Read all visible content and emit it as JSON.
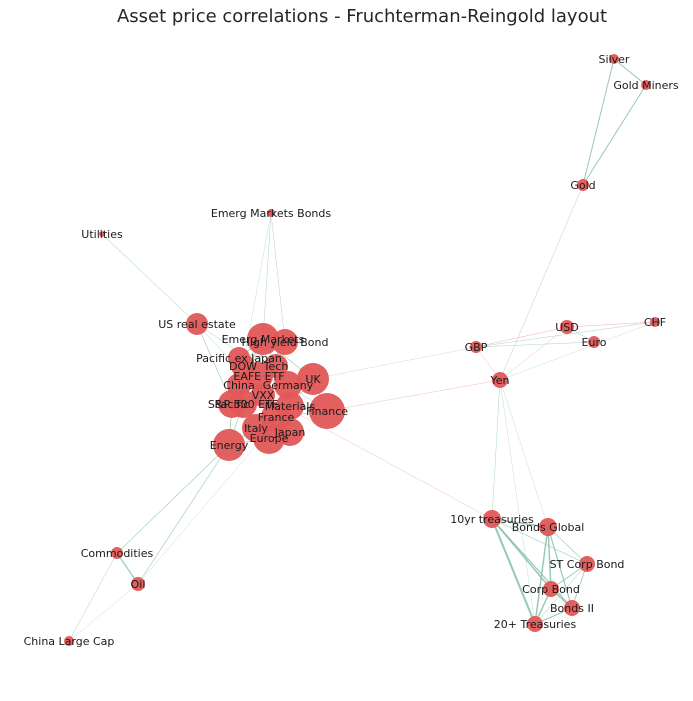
{
  "title": "Asset price correlations - Fruchterman-Reingold layout",
  "colors": {
    "node": "#e15759",
    "edge_positive": "#86bfa7",
    "edge_negative": "#f08fa0"
  },
  "nodes": [
    {
      "id": "silver",
      "label": "Silver",
      "size": 5
    },
    {
      "id": "gold-miners",
      "label": "Gold Miners",
      "size": 5
    },
    {
      "id": "gold",
      "label": "Gold",
      "size": 6
    },
    {
      "id": "emerg-markets-bonds",
      "label": "Emerg Markets Bonds",
      "size": 4
    },
    {
      "id": "utilities",
      "label": "Utilities",
      "size": 3
    },
    {
      "id": "us-real-estate",
      "label": "US real estate",
      "size": 11
    },
    {
      "id": "emerg-markets",
      "label": "Emerg Markets",
      "size": 16
    },
    {
      "id": "high-yield-bond",
      "label": "High yield Bond",
      "size": 13
    },
    {
      "id": "pacific-ex-japan",
      "label": "Pacific ex Japan",
      "size": 11
    },
    {
      "id": "dow",
      "label": "DOW",
      "size": 12
    },
    {
      "id": "tech",
      "label": "Tech",
      "size": 12
    },
    {
      "id": "eafe-etf",
      "label": "EAFE ETF",
      "size": 14
    },
    {
      "id": "uk",
      "label": "UK",
      "size": 16
    },
    {
      "id": "china",
      "label": "China",
      "size": 12
    },
    {
      "id": "germany",
      "label": "Germany",
      "size": 14
    },
    {
      "id": "vxx",
      "label": "VXX",
      "size": 12
    },
    {
      "id": "sp500-etf",
      "label": "S&P 500 ETF",
      "size": 14
    },
    {
      "id": "pacific",
      "label": "Pacific",
      "size": 14
    },
    {
      "id": "materials",
      "label": "Materials",
      "size": 14
    },
    {
      "id": "finance",
      "label": "Finance",
      "size": 18
    },
    {
      "id": "france",
      "label": "France",
      "size": 15
    },
    {
      "id": "italy",
      "label": "Italy",
      "size": 14
    },
    {
      "id": "japan",
      "label": "Japan",
      "size": 14
    },
    {
      "id": "europe",
      "label": "Europe",
      "size": 16
    },
    {
      "id": "energy",
      "label": "Energy",
      "size": 16
    },
    {
      "id": "usd",
      "label": "USD",
      "size": 7
    },
    {
      "id": "chf",
      "label": "CHF",
      "size": 5
    },
    {
      "id": "gbp",
      "label": "GBP",
      "size": 6
    },
    {
      "id": "euro",
      "label": "Euro",
      "size": 6
    },
    {
      "id": "yen",
      "label": "Yen",
      "size": 8
    },
    {
      "id": "10yr-treasuries",
      "label": "10yr treasuries",
      "size": 9
    },
    {
      "id": "bonds-global",
      "label": "Bonds Global",
      "size": 9
    },
    {
      "id": "st-corp-bond",
      "label": "ST Corp Bond",
      "size": 8
    },
    {
      "id": "corp-bond",
      "label": "Corp Bond",
      "size": 8
    },
    {
      "id": "bonds-ii",
      "label": "Bonds II",
      "size": 8
    },
    {
      "id": "20-treasuries",
      "label": "20+ Treasuries",
      "size": 8
    },
    {
      "id": "commodities",
      "label": "Commodities",
      "size": 6
    },
    {
      "id": "oil",
      "label": "Oil",
      "size": 7
    },
    {
      "id": "china-large-cap",
      "label": "China Large Cap",
      "size": 5
    }
  ],
  "edges": [
    [
      "silver",
      "gold-miners",
      "pos",
      1.0
    ],
    [
      "silver",
      "gold",
      "pos",
      1.0
    ],
    [
      "gold-miners",
      "gold",
      "pos",
      1.0
    ],
    [
      "gold",
      "yen",
      "pos",
      0.4
    ],
    [
      "utilities",
      "us-real-estate",
      "pos",
      0.5
    ],
    [
      "us-real-estate",
      "pacific",
      "pos",
      0.6
    ],
    [
      "us-real-estate",
      "vxx",
      "pos",
      0.4
    ],
    [
      "us-real-estate",
      "finance",
      "pos",
      0.4
    ],
    [
      "emerg-markets-bonds",
      "emerg-markets",
      "pos",
      0.4
    ],
    [
      "emerg-markets-bonds",
      "high-yield-bond",
      "pos",
      0.4
    ],
    [
      "emerg-markets-bonds",
      "dow",
      "pos",
      0.3
    ],
    [
      "uk",
      "gbp",
      "pos",
      0.3
    ],
    [
      "finance",
      "yen",
      "neg",
      0.4
    ],
    [
      "vxx",
      "10yr-treasuries",
      "neg",
      0.4
    ],
    [
      "usd",
      "chf",
      "neg",
      0.5
    ],
    [
      "usd",
      "euro",
      "pos",
      0.5
    ],
    [
      "usd",
      "gbp",
      "neg",
      0.5
    ],
    [
      "gbp",
      "euro",
      "pos",
      0.4
    ],
    [
      "gbp",
      "chf",
      "pos",
      0.4
    ],
    [
      "yen",
      "chf",
      "pos",
      0.3
    ],
    [
      "yen",
      "usd",
      "neg",
      0.4
    ],
    [
      "yen",
      "gbp",
      "neg",
      0.4
    ],
    [
      "yen",
      "10yr-treasuries",
      "pos",
      0.4
    ],
    [
      "yen",
      "20-treasuries",
      "pos",
      0.3
    ],
    [
      "yen",
      "bonds-global",
      "pos",
      0.3
    ],
    [
      "10yr-treasuries",
      "bonds-global",
      "pos",
      1.5
    ],
    [
      "10yr-treasuries",
      "corp-bond",
      "pos",
      1.5
    ],
    [
      "10yr-treasuries",
      "20-treasuries",
      "pos",
      2.0
    ],
    [
      "10yr-treasuries",
      "bonds-ii",
      "pos",
      1.2
    ],
    [
      "10yr-treasuries",
      "st-corp-bond",
      "pos",
      0.6
    ],
    [
      "bonds-global",
      "corp-bond",
      "pos",
      1.5
    ],
    [
      "bonds-global",
      "20-treasuries",
      "pos",
      1.5
    ],
    [
      "bonds-global",
      "bonds-ii",
      "pos",
      1.2
    ],
    [
      "bonds-global",
      "st-corp-bond",
      "pos",
      0.6
    ],
    [
      "st-corp-bond",
      "corp-bond",
      "pos",
      0.8
    ],
    [
      "st-corp-bond",
      "bonds-ii",
      "pos",
      0.8
    ],
    [
      "st-corp-bond",
      "20-treasuries",
      "pos",
      0.5
    ],
    [
      "corp-bond",
      "20-treasuries",
      "pos",
      1.5
    ],
    [
      "corp-bond",
      "bonds-ii",
      "pos",
      1.5
    ],
    [
      "bonds-ii",
      "20-treasuries",
      "pos",
      1.2
    ],
    [
      "commodities",
      "oil",
      "pos",
      1.2
    ],
    [
      "commodities",
      "energy",
      "pos",
      0.6
    ],
    [
      "commodities",
      "china-large-cap",
      "pos",
      0.4
    ],
    [
      "oil",
      "energy",
      "pos",
      0.6
    ],
    [
      "oil",
      "china-large-cap",
      "pos",
      0.3
    ],
    [
      "oil",
      "materials",
      "pos",
      0.3
    ],
    [
      "emerg-markets",
      "high-yield-bond",
      "pos",
      0.8
    ],
    [
      "emerg-markets",
      "pacific-ex-japan",
      "pos",
      0.8
    ],
    [
      "emerg-markets",
      "dow",
      "pos",
      0.8
    ],
    [
      "emerg-markets",
      "tech",
      "pos",
      0.8
    ],
    [
      "emerg-markets",
      "eafe-etf",
      "pos",
      0.8
    ],
    [
      "emerg-markets",
      "china",
      "pos",
      0.8
    ],
    [
      "emerg-markets",
      "uk",
      "pos",
      0.6
    ],
    [
      "high-yield-bond",
      "dow",
      "pos",
      0.8
    ],
    [
      "high-yield-bond",
      "tech",
      "pos",
      0.8
    ],
    [
      "high-yield-bond",
      "sp500-etf",
      "pos",
      0.8
    ],
    [
      "pacific-ex-japan",
      "china",
      "pos",
      0.8
    ],
    [
      "pacific-ex-japan",
      "pacific",
      "pos",
      0.8
    ],
    [
      "pacific-ex-japan",
      "eafe-etf",
      "pos",
      0.8
    ],
    [
      "dow",
      "tech",
      "pos",
      0.8
    ],
    [
      "dow",
      "sp500-etf",
      "pos",
      0.8
    ],
    [
      "dow",
      "vxx",
      "pos",
      0.8
    ],
    [
      "dow",
      "eafe-etf",
      "pos",
      0.8
    ],
    [
      "tech",
      "eafe-etf",
      "pos",
      0.8
    ],
    [
      "tech",
      "germany",
      "pos",
      0.6
    ],
    [
      "eafe-etf",
      "uk",
      "pos",
      0.8
    ],
    [
      "eafe-etf",
      "germany",
      "pos",
      0.8
    ],
    [
      "eafe-etf",
      "france",
      "pos",
      0.8
    ],
    [
      "eafe-etf",
      "europe",
      "pos",
      0.8
    ],
    [
      "eafe-etf",
      "china",
      "pos",
      0.8
    ],
    [
      "uk",
      "germany",
      "pos",
      0.8
    ],
    [
      "uk",
      "materials",
      "pos",
      0.6
    ],
    [
      "uk",
      "finance",
      "pos",
      0.6
    ],
    [
      "china",
      "vxx",
      "pos",
      0.8
    ],
    [
      "china",
      "pacific",
      "pos",
      0.8
    ],
    [
      "germany",
      "france",
      "pos",
      0.8
    ],
    [
      "germany",
      "materials",
      "pos",
      0.8
    ],
    [
      "germany",
      "europe",
      "pos",
      0.8
    ],
    [
      "vxx",
      "sp500-etf",
      "pos",
      0.8
    ],
    [
      "vxx",
      "pacific",
      "pos",
      0.8
    ],
    [
      "vxx",
      "france",
      "pos",
      0.8
    ],
    [
      "sp500-etf",
      "pacific",
      "pos",
      0.8
    ],
    [
      "sp500-etf",
      "energy",
      "pos",
      0.6
    ],
    [
      "sp500-etf",
      "italy",
      "pos",
      0.8
    ],
    [
      "pacific",
      "energy",
      "pos",
      0.8
    ],
    [
      "pacific",
      "italy",
      "pos",
      0.8
    ],
    [
      "materials",
      "finance",
      "pos",
      0.8
    ],
    [
      "materials",
      "france",
      "pos",
      0.8
    ],
    [
      "finance",
      "france",
      "pos",
      0.6
    ],
    [
      "france",
      "italy",
      "pos",
      0.8
    ],
    [
      "france",
      "europe",
      "pos",
      0.8
    ],
    [
      "france",
      "japan",
      "pos",
      0.8
    ],
    [
      "italy",
      "europe",
      "pos",
      0.8
    ],
    [
      "italy",
      "energy",
      "pos",
      0.8
    ],
    [
      "europe",
      "japan",
      "pos",
      0.8
    ],
    [
      "europe",
      "energy",
      "pos",
      0.8
    ]
  ]
}
